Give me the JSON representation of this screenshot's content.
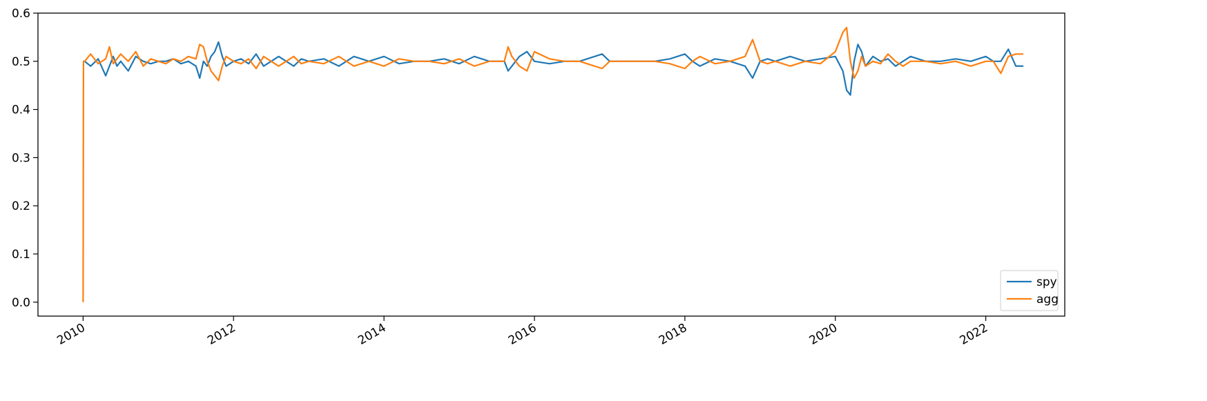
{
  "chart_data": {
    "type": "line",
    "title": "",
    "xlabel": "",
    "ylabel": "",
    "xlim": [
      2009.4,
      2023.05
    ],
    "ylim": [
      -0.029,
      0.6
    ],
    "x_ticks": [
      2010,
      2012,
      2014,
      2016,
      2018,
      2020,
      2022
    ],
    "x_tick_labels": [
      "2010",
      "2012",
      "2014",
      "2016",
      "2018",
      "2020",
      "2022"
    ],
    "y_ticks": [
      0.0,
      0.1,
      0.2,
      0.3,
      0.4,
      0.5,
      0.6
    ],
    "y_tick_labels": [
      "0.0",
      "0.1",
      "0.2",
      "0.3",
      "0.4",
      "0.5",
      "0.6"
    ],
    "grid": false,
    "legend": {
      "position": "bottom-right",
      "entries": [
        "spy",
        "agg"
      ]
    },
    "series": [
      {
        "name": "spy",
        "color": "#1f77b4",
        "x": [
          2010.0,
          2010.02,
          2010.1,
          2010.2,
          2010.3,
          2010.4,
          2010.45,
          2010.5,
          2010.6,
          2010.7,
          2010.8,
          2010.9,
          2011.0,
          2011.1,
          2011.2,
          2011.3,
          2011.4,
          2011.5,
          2011.55,
          2011.6,
          2011.65,
          2011.7,
          2011.75,
          2011.8,
          2011.85,
          2011.9,
          2012.0,
          2012.1,
          2012.2,
          2012.3,
          2012.4,
          2012.5,
          2012.6,
          2012.7,
          2012.8,
          2012.9,
          2013.0,
          2013.2,
          2013.4,
          2013.6,
          2013.8,
          2014.0,
          2014.2,
          2014.4,
          2014.6,
          2014.8,
          2015.0,
          2015.2,
          2015.4,
          2015.6,
          2015.65,
          2015.7,
          2015.8,
          2015.9,
          2016.0,
          2016.2,
          2016.4,
          2016.6,
          2016.8,
          2016.9,
          2017.0,
          2017.2,
          2017.4,
          2017.6,
          2017.8,
          2018.0,
          2018.1,
          2018.2,
          2018.4,
          2018.6,
          2018.8,
          2018.9,
          2019.0,
          2019.1,
          2019.2,
          2019.4,
          2019.6,
          2019.8,
          2020.0,
          2020.1,
          2020.15,
          2020.2,
          2020.25,
          2020.3,
          2020.35,
          2020.4,
          2020.5,
          2020.6,
          2020.7,
          2020.8,
          2020.9,
          2021.0,
          2021.2,
          2021.4,
          2021.6,
          2021.8,
          2022.0,
          2022.1,
          2022.2,
          2022.3,
          2022.4,
          2022.5
        ],
        "y": [
          0.5,
          0.5,
          0.49,
          0.505,
          0.47,
          0.51,
          0.49,
          0.5,
          0.48,
          0.51,
          0.5,
          0.495,
          0.5,
          0.5,
          0.505,
          0.495,
          0.5,
          0.49,
          0.465,
          0.5,
          0.49,
          0.51,
          0.52,
          0.54,
          0.51,
          0.49,
          0.5,
          0.505,
          0.495,
          0.515,
          0.49,
          0.5,
          0.51,
          0.5,
          0.49,
          0.505,
          0.5,
          0.505,
          0.49,
          0.51,
          0.5,
          0.51,
          0.495,
          0.5,
          0.5,
          0.505,
          0.495,
          0.51,
          0.5,
          0.5,
          0.48,
          0.49,
          0.51,
          0.52,
          0.5,
          0.495,
          0.5,
          0.5,
          0.51,
          0.515,
          0.5,
          0.5,
          0.5,
          0.5,
          0.505,
          0.515,
          0.5,
          0.49,
          0.505,
          0.5,
          0.49,
          0.465,
          0.5,
          0.505,
          0.5,
          0.51,
          0.5,
          0.505,
          0.51,
          0.48,
          0.44,
          0.43,
          0.5,
          0.535,
          0.52,
          0.49,
          0.51,
          0.5,
          0.505,
          0.49,
          0.5,
          0.51,
          0.5,
          0.5,
          0.505,
          0.5,
          0.51,
          0.5,
          0.5,
          0.525,
          0.49,
          0.49
        ]
      },
      {
        "name": "agg",
        "color": "#ff7f0e",
        "x": [
          2010.0,
          2010.005,
          2010.02,
          2010.1,
          2010.2,
          2010.3,
          2010.35,
          2010.4,
          2010.5,
          2010.6,
          2010.7,
          2010.8,
          2010.9,
          2011.0,
          2011.1,
          2011.2,
          2011.3,
          2011.4,
          2011.5,
          2011.55,
          2011.6,
          2011.65,
          2011.7,
          2011.75,
          2011.8,
          2011.85,
          2011.9,
          2012.0,
          2012.1,
          2012.2,
          2012.3,
          2012.4,
          2012.5,
          2012.6,
          2012.7,
          2012.8,
          2012.9,
          2013.0,
          2013.2,
          2013.4,
          2013.6,
          2013.8,
          2014.0,
          2014.2,
          2014.4,
          2014.6,
          2014.8,
          2015.0,
          2015.2,
          2015.4,
          2015.6,
          2015.65,
          2015.7,
          2015.8,
          2015.9,
          2016.0,
          2016.2,
          2016.4,
          2016.6,
          2016.8,
          2016.9,
          2017.0,
          2017.2,
          2017.4,
          2017.6,
          2017.8,
          2018.0,
          2018.1,
          2018.2,
          2018.4,
          2018.6,
          2018.8,
          2018.9,
          2019.0,
          2019.1,
          2019.2,
          2019.4,
          2019.6,
          2019.8,
          2020.0,
          2020.1,
          2020.15,
          2020.2,
          2020.25,
          2020.3,
          2020.35,
          2020.4,
          2020.5,
          2020.6,
          2020.7,
          2020.8,
          2020.9,
          2021.0,
          2021.2,
          2021.4,
          2021.6,
          2021.8,
          2022.0,
          2022.1,
          2022.2,
          2022.3,
          2022.4,
          2022.5
        ],
        "y": [
          0.0,
          0.5,
          0.5,
          0.515,
          0.495,
          0.505,
          0.53,
          0.495,
          0.515,
          0.5,
          0.52,
          0.49,
          0.505,
          0.5,
          0.495,
          0.505,
          0.5,
          0.51,
          0.505,
          0.535,
          0.53,
          0.5,
          0.48,
          0.47,
          0.46,
          0.49,
          0.51,
          0.5,
          0.495,
          0.505,
          0.485,
          0.51,
          0.5,
          0.49,
          0.5,
          0.51,
          0.495,
          0.5,
          0.495,
          0.51,
          0.49,
          0.5,
          0.49,
          0.505,
          0.5,
          0.5,
          0.495,
          0.505,
          0.49,
          0.5,
          0.5,
          0.53,
          0.51,
          0.49,
          0.48,
          0.52,
          0.505,
          0.5,
          0.5,
          0.49,
          0.485,
          0.5,
          0.5,
          0.5,
          0.5,
          0.495,
          0.485,
          0.5,
          0.51,
          0.495,
          0.5,
          0.51,
          0.545,
          0.5,
          0.495,
          0.5,
          0.49,
          0.5,
          0.495,
          0.52,
          0.56,
          0.57,
          0.5,
          0.465,
          0.48,
          0.51,
          0.49,
          0.5,
          0.495,
          0.515,
          0.5,
          0.49,
          0.5,
          0.5,
          0.495,
          0.5,
          0.49,
          0.5,
          0.5,
          0.475,
          0.51,
          0.515,
          0.515
        ]
      }
    ]
  }
}
